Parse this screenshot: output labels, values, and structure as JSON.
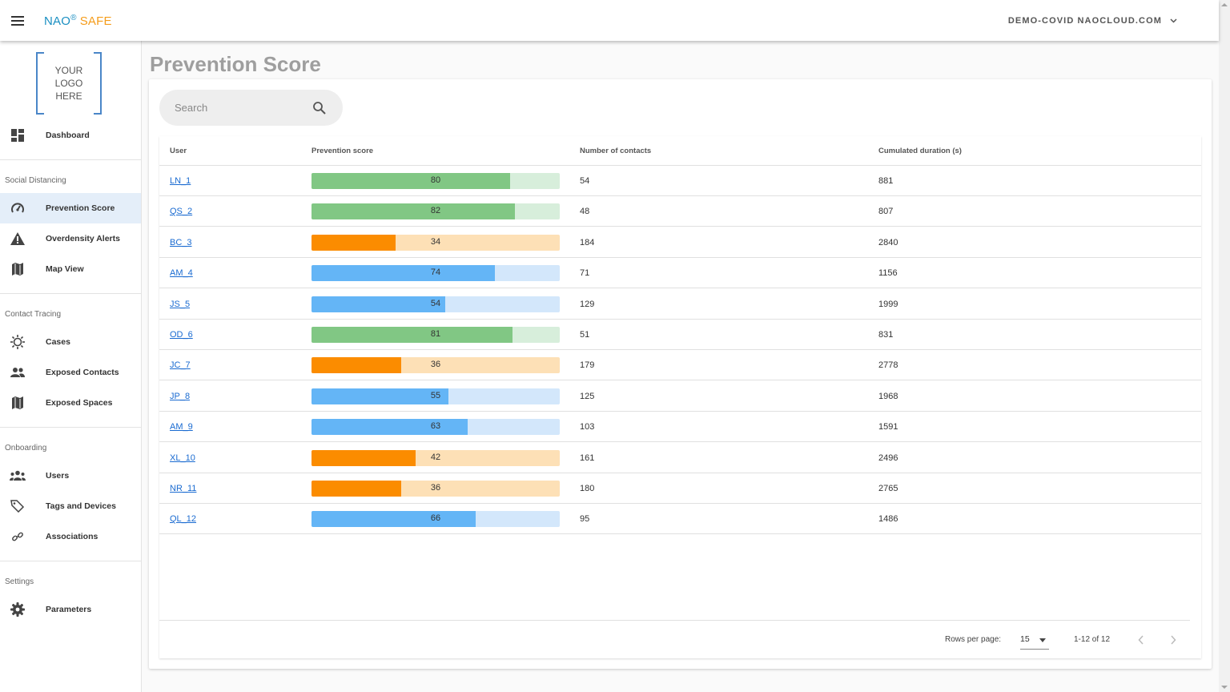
{
  "header": {
    "brand_nao": "NAO",
    "brand_reg": "®",
    "brand_safe": "SAFE",
    "account": "DEMO-COVID NAOCLOUD.COM"
  },
  "sidebar": {
    "logo_lines": [
      "YOUR",
      "LOGO",
      "HERE"
    ],
    "dashboard": "Dashboard",
    "sections": {
      "social": "Social Distancing",
      "contact": "Contact Tracing",
      "onboarding": "Onboarding",
      "settings": "Settings"
    },
    "items": {
      "prevention": "Prevention Score",
      "overdensity": "Overdensity Alerts",
      "map": "Map View",
      "cases": "Cases",
      "exposed_contacts": "Exposed Contacts",
      "exposed_spaces": "Exposed Spaces",
      "users": "Users",
      "tags": "Tags and Devices",
      "associations": "Associations",
      "parameters": "Parameters"
    }
  },
  "main": {
    "title": "Prevention Score",
    "search_placeholder": "Search",
    "columns": {
      "user": "User",
      "score": "Prevention score",
      "contacts": "Number of contacts",
      "duration": "Cumulated duration (s)"
    },
    "rows": [
      {
        "user": "LN_1",
        "score": 80,
        "contacts": "54",
        "duration": "881",
        "level": "high"
      },
      {
        "user": "QS_2",
        "score": 82,
        "contacts": "48",
        "duration": "807",
        "level": "high"
      },
      {
        "user": "BC_3",
        "score": 34,
        "contacts": "184",
        "duration": "2840",
        "level": "low"
      },
      {
        "user": "AM_4",
        "score": 74,
        "contacts": "71",
        "duration": "1156",
        "level": "mid"
      },
      {
        "user": "JS_5",
        "score": 54,
        "contacts": "129",
        "duration": "1999",
        "level": "mid"
      },
      {
        "user": "OD_6",
        "score": 81,
        "contacts": "51",
        "duration": "831",
        "level": "high"
      },
      {
        "user": "JC_7",
        "score": 36,
        "contacts": "179",
        "duration": "2778",
        "level": "low"
      },
      {
        "user": "JP_8",
        "score": 55,
        "contacts": "125",
        "duration": "1968",
        "level": "mid"
      },
      {
        "user": "AM_9",
        "score": 63,
        "contacts": "103",
        "duration": "1591",
        "level": "mid"
      },
      {
        "user": "XL_10",
        "score": 42,
        "contacts": "161",
        "duration": "2496",
        "level": "low"
      },
      {
        "user": "NR_11",
        "score": 36,
        "contacts": "180",
        "duration": "2765",
        "level": "low"
      },
      {
        "user": "QL_12",
        "score": 66,
        "contacts": "95",
        "duration": "1486",
        "level": "mid"
      }
    ],
    "footer": {
      "rows_per_page_label": "Rows per page:",
      "rows_per_page": "15",
      "range": "1-12 of 12"
    }
  },
  "colors": {
    "high_fill": "#81c784",
    "high_bg": "#d7eedb",
    "mid_fill": "#64b5f6",
    "mid_bg": "#d3e7fb",
    "low_fill": "#fb8c00",
    "low_bg": "#fde0b6",
    "brand_blue": "#1a8fc2",
    "brand_orange": "#f59c1a",
    "link": "#1a6bd1"
  }
}
